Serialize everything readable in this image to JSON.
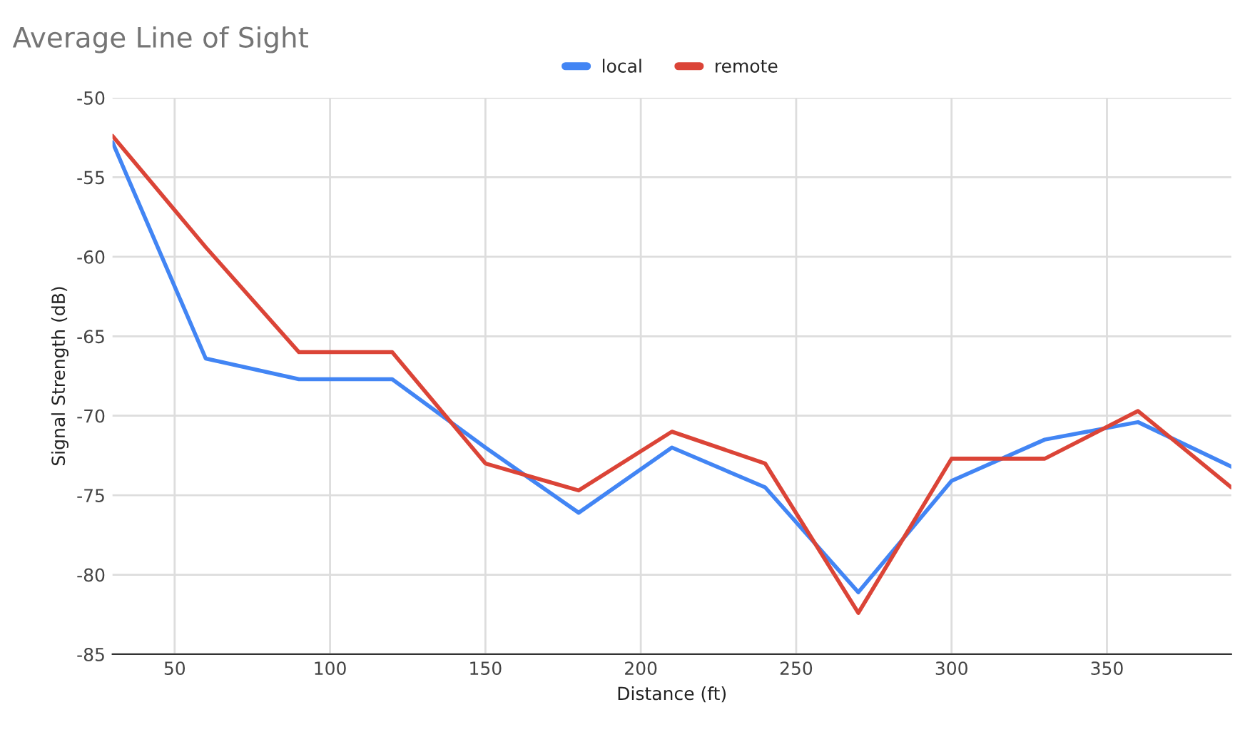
{
  "chart_data": {
    "type": "line",
    "title": "Average Line of Sight",
    "xlabel": "Distance (ft)",
    "ylabel": "Signal Strength (dB)",
    "x": [
      30,
      60,
      90,
      120,
      150,
      180,
      210,
      240,
      270,
      300,
      330,
      360,
      390
    ],
    "series": [
      {
        "name": "local",
        "color": "#4285f4",
        "values": [
          -52.8,
          -66.4,
          -67.7,
          -67.7,
          -72,
          -76.1,
          -72,
          -74.5,
          -81.1,
          -74.1,
          -71.5,
          -70.4,
          -73.2
        ]
      },
      {
        "name": "remote",
        "color": "#db4437",
        "values": [
          -52.4,
          -59.4,
          -66,
          -66,
          -73,
          -74.7,
          -71,
          -73,
          -82.4,
          -72.7,
          -72.7,
          -69.7,
          -74.5
        ]
      }
    ],
    "xlim": [
      30,
      390
    ],
    "xticks": [
      50,
      100,
      150,
      200,
      250,
      300,
      350
    ],
    "ylim": [
      -85,
      -50
    ],
    "yticks": [
      -85,
      -80,
      -75,
      -70,
      -65,
      -60,
      -55,
      -50
    ],
    "grid": true,
    "legend": "top",
    "marker": "none",
    "line_style": "solid"
  }
}
